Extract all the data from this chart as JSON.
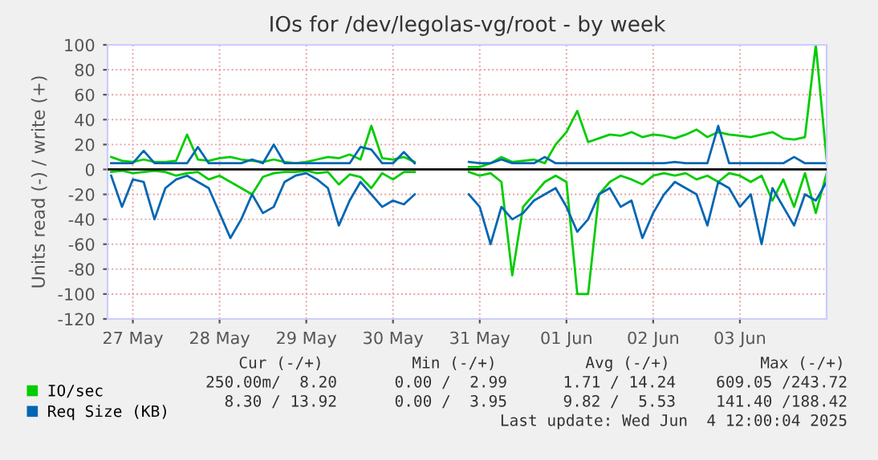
{
  "chart_data": {
    "type": "line",
    "title": "IOs for /dev/legolas-vg/root - by week",
    "ylabel": "Units read (-) / write (+)",
    "x": [
      "2025-05-27T06:00",
      "2025-05-27T09:00",
      "2025-05-27T12:00",
      "2025-05-27T15:00",
      "2025-05-27T18:00",
      "2025-05-27T21:00",
      "2025-05-28T00:00",
      "2025-05-28T03:00",
      "2025-05-28T06:00",
      "2025-05-28T09:00",
      "2025-05-28T12:00",
      "2025-05-28T15:00",
      "2025-05-28T18:00",
      "2025-05-28T21:00",
      "2025-05-29T00:00",
      "2025-05-29T03:00",
      "2025-05-29T06:00",
      "2025-05-29T09:00",
      "2025-05-29T12:00",
      "2025-05-29T15:00",
      "2025-05-29T18:00",
      "2025-05-29T21:00",
      "2025-05-30T00:00",
      "2025-05-30T03:00",
      "2025-05-30T06:00",
      "2025-05-30T09:00",
      "2025-05-30T12:00",
      "2025-05-30T15:00",
      "2025-05-30T18:00",
      "2025-05-30T21:00",
      "2025-05-31T00:00",
      "2025-05-31T03:00",
      "2025-05-31T06:00",
      "2025-05-31T09:00",
      "2025-05-31T12:00",
      "2025-05-31T15:00",
      "2025-05-31T18:00",
      "2025-05-31T21:00",
      "2025-06-01T00:00",
      "2025-06-01T03:00",
      "2025-06-01T06:00",
      "2025-06-01T09:00",
      "2025-06-01T12:00",
      "2025-06-01T15:00",
      "2025-06-01T18:00",
      "2025-06-01T21:00",
      "2025-06-02T00:00",
      "2025-06-02T03:00",
      "2025-06-02T06:00",
      "2025-06-02T09:00",
      "2025-06-02T12:00",
      "2025-06-02T15:00",
      "2025-06-02T18:00",
      "2025-06-02T21:00",
      "2025-06-03T00:00",
      "2025-06-03T03:00",
      "2025-06-03T06:00",
      "2025-06-03T09:00",
      "2025-06-03T12:00",
      "2025-06-03T15:00",
      "2025-06-03T18:00",
      "2025-06-03T21:00",
      "2025-06-04T00:00",
      "2025-06-04T03:00",
      "2025-06-04T06:00",
      "2025-06-04T09:00",
      "2025-06-04T12:00"
    ],
    "series": [
      {
        "name": "IO/sec",
        "color": "#00cc00",
        "values": [
          10,
          7,
          6,
          8,
          6,
          6,
          7,
          28,
          8,
          7,
          9,
          10,
          8,
          7,
          6,
          8,
          6,
          5,
          6,
          8,
          10,
          9,
          12,
          8,
          35,
          9,
          8,
          10,
          6,
          null,
          null,
          null,
          null,
          2,
          2,
          5,
          10,
          6,
          7,
          8,
          5,
          20,
          30,
          47,
          22,
          25,
          28,
          27,
          30,
          26,
          28,
          27,
          25,
          28,
          32,
          26,
          30,
          28,
          27,
          26,
          28,
          30,
          25,
          24,
          26,
          100,
          8
        ]
      },
      {
        "color": "#00cc00",
        "values": [
          -2,
          -1,
          -3,
          -2,
          -1,
          -2,
          -5,
          -3,
          -2,
          -8,
          -5,
          -10,
          -15,
          -20,
          -6,
          -3,
          -2,
          -2,
          -1,
          -3,
          -2,
          -12,
          -4,
          -6,
          -15,
          -3,
          -8,
          -2,
          -2,
          null,
          null,
          null,
          null,
          -2,
          -5,
          -3,
          -10,
          -85,
          -30,
          -20,
          -10,
          -5,
          -10,
          -100,
          -100,
          -20,
          -10,
          -5,
          -8,
          -12,
          -5,
          -3,
          -5,
          -3,
          -8,
          -5,
          -10,
          -3,
          -5,
          -10,
          -5,
          -25,
          -8,
          -30,
          -3,
          -35,
          -3
        ]
      },
      {
        "name": "Req Size (KB)",
        "color": "#0066b3",
        "values": [
          5,
          5,
          5,
          15,
          5,
          5,
          5,
          5,
          18,
          5,
          5,
          5,
          5,
          8,
          5,
          20,
          5,
          5,
          5,
          5,
          5,
          5,
          5,
          18,
          16,
          5,
          5,
          14,
          5,
          null,
          null,
          null,
          null,
          6,
          5,
          5,
          8,
          5,
          5,
          5,
          10,
          5,
          5,
          5,
          5,
          5,
          5,
          5,
          5,
          5,
          5,
          5,
          6,
          5,
          5,
          5,
          35,
          5,
          5,
          5,
          5,
          5,
          5,
          10,
          5,
          5,
          5
        ]
      },
      {
        "color": "#0066b3",
        "values": [
          -5,
          -30,
          -8,
          -10,
          -40,
          -15,
          -8,
          -5,
          -10,
          -15,
          -35,
          -55,
          -40,
          -20,
          -35,
          -30,
          -10,
          -5,
          -3,
          -8,
          -15,
          -45,
          -25,
          -10,
          -20,
          -30,
          -25,
          -28,
          -20,
          null,
          null,
          null,
          null,
          -20,
          -30,
          -60,
          -30,
          -40,
          -35,
          -25,
          -20,
          -15,
          -30,
          -50,
          -40,
          -20,
          -15,
          -30,
          -25,
          -55,
          -35,
          -20,
          -10,
          -15,
          -20,
          -45,
          -10,
          -15,
          -30,
          -20,
          -60,
          -15,
          -30,
          -45,
          -20,
          -25,
          -10
        ]
      }
    ],
    "xlim": [
      "2025-05-27T05:00",
      "2025-06-04T12:00"
    ],
    "xticks": [
      {
        "value": "2025-05-27T12:00",
        "label": "27 May"
      },
      {
        "value": "2025-05-28T12:00",
        "label": "28 May"
      },
      {
        "value": "2025-05-29T12:00",
        "label": "29 May"
      },
      {
        "value": "2025-05-30T12:00",
        "label": "30 May"
      },
      {
        "value": "2025-05-31T12:00",
        "label": "31 May"
      },
      {
        "value": "2025-06-01T12:00",
        "label": "01 Jun"
      },
      {
        "value": "2025-06-02T12:00",
        "label": "02 Jun"
      },
      {
        "value": "2025-06-03T12:00",
        "label": "03 Jun"
      }
    ],
    "ylim": [
      -120,
      100
    ],
    "yticks": [
      -120,
      -100,
      -80,
      -60,
      -40,
      -20,
      0,
      20,
      40,
      60,
      80,
      100
    ],
    "ref_lines": [
      {
        "axis": "y",
        "value": 0,
        "color": "#000000"
      }
    ],
    "grid": true,
    "legend": "bottom left",
    "marker": "none",
    "line_style": "solid",
    "annotations": [
      "Cur (-/+)",
      "Min (-/+)",
      "Avg (-/+)",
      "Max (-/+)",
      "250.00m/  8.20",
      "0.00 /  2.99",
      "1.71 / 14.24",
      "609.05 /243.72",
      "8.30 / 13.92",
      "0.00 /  3.95",
      "9.82 /  5.53",
      "141.40 /188.42",
      "Last update: Wed Jun  4 12:00:04 2025"
    ]
  }
}
